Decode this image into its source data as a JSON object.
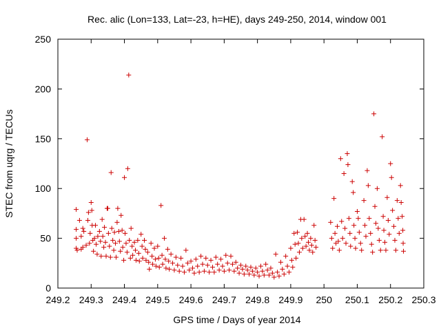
{
  "chart_data": {
    "type": "scatter",
    "title": "Rec. alic (Lon=133, Lat=-23, h=HE), days 249-250, 2014, window 001",
    "xlabel": "GPS time / Days of year 2014",
    "ylabel": "STEC from uqrg / TECUs",
    "xlim": [
      249.2,
      250.3
    ],
    "ylim": [
      0,
      250
    ],
    "xticks": [
      "249.2",
      "249.3",
      "249.4",
      "249.5",
      "249.6",
      "249.7",
      "249.8",
      "249.9",
      "250",
      "250.1",
      "250.2",
      "250.3"
    ],
    "yticks": [
      "0",
      "50",
      "100",
      "150",
      "200",
      "250"
    ],
    "grid": false,
    "marker": "plus",
    "color": "#cc0000",
    "series": [
      {
        "points": [
          [
            249.255,
            79
          ],
          [
            249.255,
            59
          ],
          [
            249.255,
            50
          ],
          [
            249.255,
            40
          ],
          [
            249.258,
            38
          ],
          [
            249.265,
            68
          ],
          [
            249.27,
            52
          ],
          [
            249.27,
            39
          ],
          [
            249.275,
            60
          ],
          [
            249.275,
            41
          ],
          [
            249.278,
            57
          ],
          [
            249.285,
            43
          ],
          [
            249.288,
            149
          ],
          [
            249.29,
            68
          ],
          [
            249.292,
            76
          ],
          [
            249.295,
            45
          ],
          [
            249.297,
            55
          ],
          [
            249.3,
            86
          ],
          [
            249.302,
            78
          ],
          [
            249.303,
            63
          ],
          [
            249.305,
            48
          ],
          [
            249.307,
            37
          ],
          [
            249.31,
            50
          ],
          [
            249.313,
            63
          ],
          [
            249.315,
            44
          ],
          [
            249.318,
            34
          ],
          [
            249.32,
            52
          ],
          [
            249.325,
            57
          ],
          [
            249.328,
            47
          ],
          [
            249.33,
            32
          ],
          [
            249.333,
            69
          ],
          [
            249.335,
            52
          ],
          [
            249.338,
            41
          ],
          [
            249.34,
            61
          ],
          [
            249.343,
            46
          ],
          [
            249.345,
            32
          ],
          [
            249.348,
            80
          ],
          [
            249.35,
            80
          ],
          [
            249.352,
            55
          ],
          [
            249.355,
            42
          ],
          [
            249.358,
            31
          ],
          [
            249.36,
            116
          ],
          [
            249.362,
            60
          ],
          [
            249.365,
            48
          ],
          [
            249.368,
            38
          ],
          [
            249.37,
            56
          ],
          [
            249.373,
            45
          ],
          [
            249.375,
            31
          ],
          [
            249.378,
            66
          ],
          [
            249.38,
            80
          ],
          [
            249.383,
            57
          ],
          [
            249.385,
            47
          ],
          [
            249.388,
            37
          ],
          [
            249.39,
            73
          ],
          [
            249.393,
            58
          ],
          [
            249.395,
            41
          ],
          [
            249.398,
            28
          ],
          [
            249.4,
            111
          ],
          [
            249.402,
            55
          ],
          [
            249.405,
            45
          ],
          [
            249.408,
            36
          ],
          [
            249.41,
            120
          ],
          [
            249.413,
            214
          ],
          [
            249.415,
            48
          ],
          [
            249.418,
            30
          ],
          [
            249.42,
            60
          ],
          [
            249.423,
            42
          ],
          [
            249.425,
            33
          ],
          [
            249.43,
            46
          ],
          [
            249.433,
            38
          ],
          [
            249.435,
            28
          ],
          [
            249.44,
            48
          ],
          [
            249.443,
            35
          ],
          [
            249.445,
            27
          ],
          [
            249.45,
            54
          ],
          [
            249.453,
            42
          ],
          [
            249.455,
            30
          ],
          [
            249.46,
            48
          ],
          [
            249.463,
            39
          ],
          [
            249.465,
            28
          ],
          [
            249.47,
            36
          ],
          [
            249.473,
            26
          ],
          [
            249.475,
            19
          ],
          [
            249.48,
            45
          ],
          [
            249.483,
            32
          ],
          [
            249.485,
            24
          ],
          [
            249.49,
            40
          ],
          [
            249.493,
            29
          ],
          [
            249.495,
            22
          ],
          [
            249.5,
            42
          ],
          [
            249.503,
            30
          ],
          [
            249.505,
            21
          ],
          [
            249.51,
            83
          ],
          [
            249.513,
            33
          ],
          [
            249.515,
            24
          ],
          [
            249.52,
            50
          ],
          [
            249.523,
            29
          ],
          [
            249.525,
            20
          ],
          [
            249.53,
            39
          ],
          [
            249.533,
            27
          ],
          [
            249.535,
            19
          ],
          [
            249.54,
            34
          ],
          [
            249.545,
            25
          ],
          [
            249.55,
            18
          ],
          [
            249.555,
            31
          ],
          [
            249.56,
            23
          ],
          [
            249.565,
            17
          ],
          [
            249.57,
            30
          ],
          [
            249.575,
            22
          ],
          [
            249.58,
            16
          ],
          [
            249.585,
            38
          ],
          [
            249.59,
            25
          ],
          [
            249.595,
            18
          ],
          [
            249.6,
            27
          ],
          [
            249.605,
            20
          ],
          [
            249.61,
            15
          ],
          [
            249.615,
            29
          ],
          [
            249.62,
            22
          ],
          [
            249.625,
            16
          ],
          [
            249.63,
            32
          ],
          [
            249.635,
            24
          ],
          [
            249.64,
            17
          ],
          [
            249.645,
            30
          ],
          [
            249.65,
            23
          ],
          [
            249.655,
            16
          ],
          [
            249.66,
            28
          ],
          [
            249.665,
            21
          ],
          [
            249.67,
            16
          ],
          [
            249.675,
            31
          ],
          [
            249.68,
            24
          ],
          [
            249.685,
            18
          ],
          [
            249.69,
            29
          ],
          [
            249.695,
            22
          ],
          [
            249.7,
            17
          ],
          [
            249.705,
            33
          ],
          [
            249.71,
            25
          ],
          [
            249.715,
            18
          ],
          [
            249.72,
            32
          ],
          [
            249.725,
            24
          ],
          [
            249.73,
            17
          ],
          [
            249.735,
            26
          ],
          [
            249.74,
            20
          ],
          [
            249.745,
            15
          ],
          [
            249.75,
            23
          ],
          [
            249.755,
            19
          ],
          [
            249.76,
            14
          ],
          [
            249.765,
            22
          ],
          [
            249.77,
            18
          ],
          [
            249.775,
            14
          ],
          [
            249.78,
            21
          ],
          [
            249.785,
            17
          ],
          [
            249.79,
            13
          ],
          [
            249.795,
            20
          ],
          [
            249.8,
            16
          ],
          [
            249.805,
            12
          ],
          [
            249.81,
            22
          ],
          [
            249.815,
            17
          ],
          [
            249.82,
            13
          ],
          [
            249.825,
            24
          ],
          [
            249.83,
            18
          ],
          [
            249.835,
            13
          ],
          [
            249.84,
            20
          ],
          [
            249.845,
            15
          ],
          [
            249.85,
            11
          ],
          [
            249.855,
            34
          ],
          [
            249.86,
            16
          ],
          [
            249.865,
            12
          ],
          [
            249.87,
            26
          ],
          [
            249.875,
            19
          ],
          [
            249.88,
            14
          ],
          [
            249.885,
            32
          ],
          [
            249.89,
            22
          ],
          [
            249.895,
            16
          ],
          [
            249.9,
            40
          ],
          [
            249.903,
            28
          ],
          [
            249.906,
            21
          ],
          [
            249.91,
            55
          ],
          [
            249.913,
            44
          ],
          [
            249.916,
            30
          ],
          [
            249.92,
            56
          ],
          [
            249.923,
            45
          ],
          [
            249.926,
            36
          ],
          [
            249.93,
            69
          ],
          [
            249.933,
            50
          ],
          [
            249.936,
            40
          ],
          [
            249.94,
            69
          ],
          [
            249.943,
            52
          ],
          [
            249.946,
            42
          ],
          [
            249.95,
            55
          ],
          [
            249.953,
            46
          ],
          [
            249.956,
            38
          ],
          [
            249.96,
            50
          ],
          [
            249.963,
            43
          ],
          [
            249.966,
            36
          ],
          [
            249.97,
            63
          ],
          [
            249.973,
            48
          ],
          [
            249.976,
            41
          ],
          [
            250.02,
            66
          ],
          [
            250.023,
            50
          ],
          [
            250.026,
            40
          ],
          [
            250.03,
            90
          ],
          [
            250.033,
            55
          ],
          [
            250.036,
            45
          ],
          [
            250.04,
            62
          ],
          [
            250.043,
            47
          ],
          [
            250.046,
            38
          ],
          [
            250.05,
            130
          ],
          [
            250.053,
            67
          ],
          [
            250.056,
            50
          ],
          [
            250.06,
            115
          ],
          [
            250.063,
            60
          ],
          [
            250.066,
            45
          ],
          [
            250.07,
            135
          ],
          [
            250.072,
            124
          ],
          [
            250.075,
            70
          ],
          [
            250.078,
            55
          ],
          [
            250.08,
            42
          ],
          [
            250.085,
            107
          ],
          [
            250.088,
            96
          ],
          [
            250.09,
            63
          ],
          [
            250.093,
            50
          ],
          [
            250.095,
            40
          ],
          [
            250.1,
            77
          ],
          [
            250.103,
            70
          ],
          [
            250.106,
            56
          ],
          [
            250.11,
            45
          ],
          [
            250.113,
            38
          ],
          [
            250.12,
            88
          ],
          [
            250.123,
            63
          ],
          [
            250.126,
            52
          ],
          [
            250.13,
            118
          ],
          [
            250.133,
            103
          ],
          [
            250.136,
            70
          ],
          [
            250.14,
            55
          ],
          [
            250.143,
            44
          ],
          [
            250.146,
            36
          ],
          [
            250.15,
            175
          ],
          [
            250.153,
            82
          ],
          [
            250.156,
            65
          ],
          [
            250.16,
            100
          ],
          [
            250.163,
            60
          ],
          [
            250.166,
            48
          ],
          [
            250.17,
            38
          ],
          [
            250.175,
            152
          ],
          [
            250.178,
            72
          ],
          [
            250.18,
            58
          ],
          [
            250.183,
            46
          ],
          [
            250.186,
            38
          ],
          [
            250.19,
            91
          ],
          [
            250.193,
            68
          ],
          [
            250.196,
            54
          ],
          [
            250.2,
            125
          ],
          [
            250.203,
            111
          ],
          [
            250.206,
            78
          ],
          [
            250.21,
            62
          ],
          [
            250.213,
            48
          ],
          [
            250.216,
            38
          ],
          [
            250.22,
            88
          ],
          [
            250.223,
            70
          ],
          [
            250.226,
            55
          ],
          [
            250.23,
            103
          ],
          [
            250.232,
            86
          ],
          [
            250.235,
            72
          ],
          [
            250.237,
            58
          ],
          [
            250.238,
            45
          ],
          [
            250.239,
            37
          ]
        ]
      }
    ]
  }
}
